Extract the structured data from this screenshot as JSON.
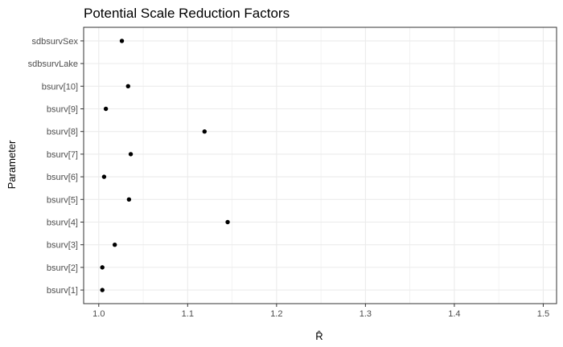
{
  "chart_data": {
    "type": "scatter",
    "title": "Potential Scale Reduction Factors",
    "xlabel": "R̂",
    "ylabel": "Parameter",
    "xlim": [
      0.983,
      1.515
    ],
    "xticks": [
      1.0,
      1.1,
      1.2,
      1.3,
      1.4,
      1.5
    ],
    "xtick_labels": [
      "1.0",
      "1.1",
      "1.2",
      "1.3",
      "1.4",
      "1.5"
    ],
    "categories": [
      "bsurv[1]",
      "bsurv[2]",
      "bsurv[3]",
      "bsurv[4]",
      "bsurv[5]",
      "bsurv[6]",
      "bsurv[7]",
      "bsurv[8]",
      "bsurv[9]",
      "bsurv[10]",
      "sdbsurvLake",
      "sdbsurvSex"
    ],
    "values": [
      1.004,
      1.004,
      1.018,
      1.145,
      1.034,
      1.006,
      1.036,
      1.119,
      1.008,
      1.033,
      null,
      1.026
    ],
    "grid": true,
    "point_color": "#000000",
    "panel_background": "#ffffff",
    "grid_color": "#ebebeb",
    "border_color": "#333333"
  }
}
